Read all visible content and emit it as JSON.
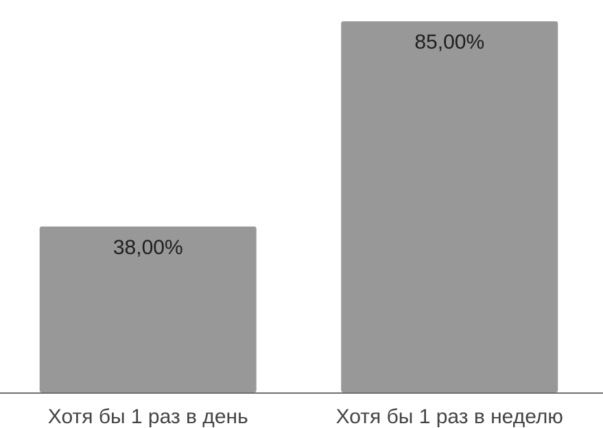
{
  "chart_data": {
    "type": "bar",
    "title": "",
    "xlabel": "",
    "ylabel": "",
    "categories": [
      "Хотя бы 1 раз в день",
      "Хотя бы 1 раз в неделю"
    ],
    "values": [
      38,
      85
    ],
    "value_labels": [
      "38,00%",
      "85,00%"
    ],
    "ylim": [
      0,
      88
    ],
    "grid": false,
    "legend": "none",
    "colors": {
      "bar": "#989898",
      "axis": "#6e6e6e",
      "label": "#1f1f1f",
      "tick": "#444444"
    }
  }
}
